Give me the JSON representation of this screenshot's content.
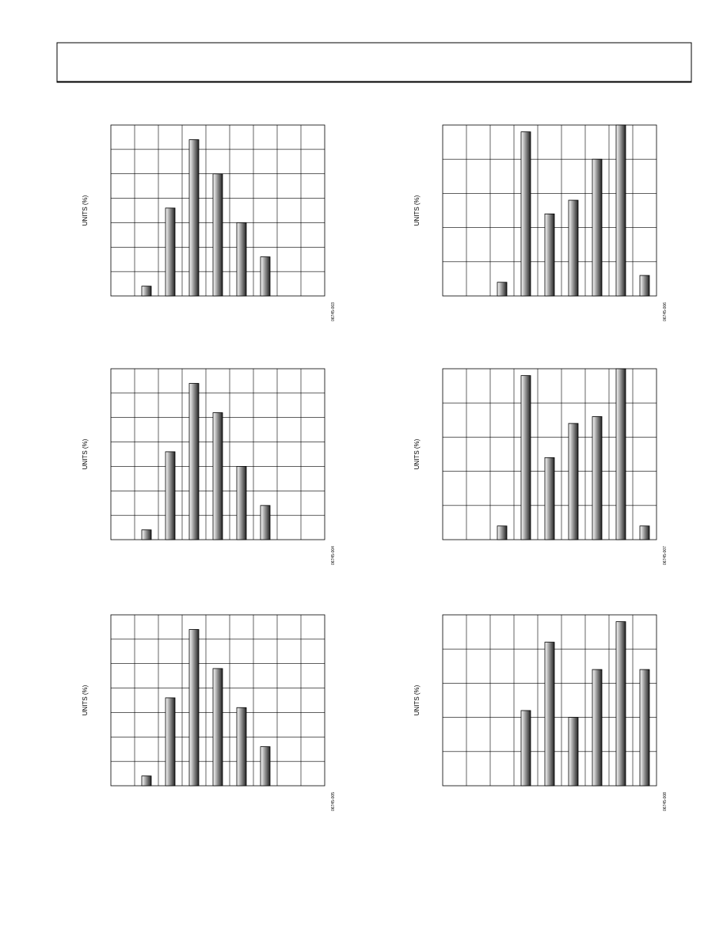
{
  "chart_data": [
    {
      "type": "bar",
      "y_label": "UNITS (%)",
      "figure_id": "06745-003",
      "categories": [
        null,
        null,
        null,
        null,
        null,
        null,
        null,
        null,
        null
      ],
      "values": [
        null,
        0.4,
        3.6,
        6.4,
        5.0,
        3.0,
        1.6,
        null,
        null
      ],
      "ylim": [
        0,
        7
      ],
      "grid": true,
      "color": "#9a9a9a"
    },
    {
      "type": "bar",
      "y_label": "UNITS (%)",
      "figure_id": "06745-004",
      "categories": [
        null,
        null,
        null,
        null,
        null,
        null,
        null,
        null,
        null
      ],
      "values": [
        null,
        0.4,
        3.6,
        6.4,
        5.2,
        3.0,
        1.4,
        null,
        null
      ],
      "ylim": [
        0,
        7
      ],
      "grid": true,
      "color": "#9a9a9a"
    },
    {
      "type": "bar",
      "y_label": "UNITS (%)",
      "figure_id": "06745-005",
      "categories": [
        null,
        null,
        null,
        null,
        null,
        null,
        null,
        null,
        null
      ],
      "values": [
        null,
        0.4,
        3.6,
        6.4,
        4.8,
        3.2,
        1.6,
        null,
        null
      ],
      "ylim": [
        0,
        7
      ],
      "grid": true,
      "color": "#9a9a9a"
    },
    {
      "type": "bar",
      "y_label": "UNITS (%)",
      "figure_id": "06745-006",
      "categories": [
        null,
        null,
        null,
        null,
        null,
        null,
        null,
        null,
        null
      ],
      "values": [
        null,
        null,
        0.4,
        4.8,
        2.4,
        2.8,
        4.0,
        5.0,
        0.6
      ],
      "ylim": [
        0,
        5
      ],
      "grid": true,
      "color": "#9a9a9a"
    },
    {
      "type": "bar",
      "y_label": "UNITS (%)",
      "figure_id": "06745-007",
      "categories": [
        null,
        null,
        null,
        null,
        null,
        null,
        null,
        null,
        null
      ],
      "values": [
        null,
        null,
        0.4,
        4.8,
        2.4,
        3.4,
        3.6,
        5.0,
        0.4
      ],
      "ylim": [
        0,
        5
      ],
      "grid": true,
      "color": "#9a9a9a"
    },
    {
      "type": "bar",
      "y_label": "UNITS (%)",
      "figure_id": "06745-008",
      "categories": [
        null,
        null,
        null,
        null,
        null,
        null,
        null,
        null,
        null
      ],
      "values": [
        null,
        null,
        null,
        2.2,
        4.2,
        2.0,
        3.4,
        4.8,
        3.4
      ],
      "ylim": [
        0,
        5
      ],
      "grid": true,
      "color": "#9a9a9a"
    }
  ]
}
